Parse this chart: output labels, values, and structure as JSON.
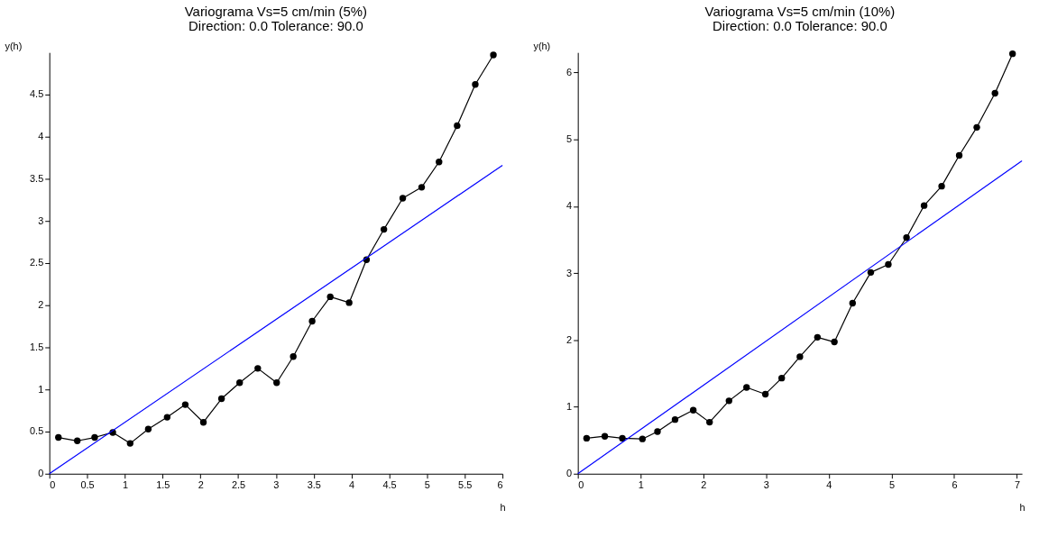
{
  "chart_data": [
    {
      "type": "line",
      "title": "Variograma Vs=5 cm/min (5%)",
      "subtitle": "Direction: 0.0   Tolerance: 90.0",
      "xlabel": "h",
      "ylabel": "y(h)",
      "xlim": [
        0,
        6
      ],
      "xticks": [
        0,
        0.5,
        1,
        1.5,
        2,
        2.5,
        3,
        3.5,
        4,
        4.5,
        5,
        5.5,
        6
      ],
      "ylim": [
        0,
        5
      ],
      "yticks": [
        0,
        0.5,
        1,
        1.5,
        2,
        2.5,
        3,
        3.5,
        4,
        4.5
      ],
      "grid": false,
      "series": [
        {
          "color": "#000000",
          "marker": "circle",
          "x": [
            0.12,
            0.37,
            0.6,
            0.84,
            1.07,
            1.31,
            1.56,
            1.8,
            2.04,
            2.28,
            2.52,
            2.76,
            3.01,
            3.23,
            3.48,
            3.72,
            3.97,
            4.2,
            4.43,
            4.68,
            4.93,
            5.16,
            5.4,
            5.64,
            5.88
          ],
          "values": [
            0.43,
            0.39,
            0.43,
            0.49,
            0.36,
            0.53,
            0.67,
            0.82,
            0.61,
            0.89,
            1.08,
            1.25,
            1.08,
            1.39,
            1.81,
            2.1,
            2.03,
            2.54,
            2.9,
            3.27,
            3.4,
            3.7,
            4.13,
            4.62,
            4.97
          ]
        },
        {
          "color": "#0000ff",
          "marker": "none",
          "x": [
            0,
            6
          ],
          "values": [
            0,
            3.66
          ]
        }
      ]
    },
    {
      "type": "line",
      "title": "Variograma Vs=5 cm/min (10%)",
      "subtitle": "Direction: 0.0   Tolerance: 90.0",
      "xlabel": "h",
      "ylabel": "y(h)",
      "xlim": [
        0,
        7.08
      ],
      "xticks": [
        0,
        1,
        2,
        3,
        4,
        5,
        6,
        7
      ],
      "ylim": [
        0,
        6.3
      ],
      "yticks": [
        0,
        1,
        2,
        3,
        4,
        5,
        6
      ],
      "grid": false,
      "series": [
        {
          "color": "#000000",
          "marker": "circle",
          "x": [
            0.14,
            0.43,
            0.71,
            1.03,
            1.27,
            1.55,
            1.84,
            2.1,
            2.41,
            2.69,
            2.99,
            3.25,
            3.54,
            3.82,
            4.09,
            4.38,
            4.67,
            4.95,
            5.24,
            5.52,
            5.8,
            6.08,
            6.36,
            6.65,
            6.93
          ],
          "values": [
            0.53,
            0.56,
            0.53,
            0.52,
            0.63,
            0.81,
            0.95,
            0.77,
            1.09,
            1.29,
            1.19,
            1.43,
            1.75,
            2.04,
            1.97,
            2.55,
            3.01,
            3.13,
            3.53,
            4.01,
            4.3,
            4.76,
            5.18,
            5.69,
            6.28
          ]
        },
        {
          "color": "#0000ff",
          "marker": "none",
          "x": [
            0,
            7.08
          ],
          "values": [
            0,
            4.68
          ]
        }
      ]
    }
  ]
}
